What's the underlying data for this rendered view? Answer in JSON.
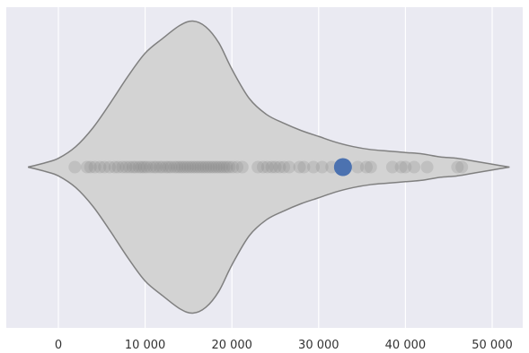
{
  "chart_data": {
    "type": "violin",
    "title": "",
    "xlabel": "",
    "ylabel": "",
    "xlim": [
      -6000,
      54000
    ],
    "x_ticks": [
      0,
      10000,
      20000,
      30000,
      40000,
      50000
    ],
    "x_tick_labels": [
      "0",
      "10 000",
      "20 000",
      "30 000",
      "40 000",
      "50 000"
    ],
    "grid": true,
    "violin_density": [
      {
        "x": -3500,
        "d": 0.0
      },
      {
        "x": -1500,
        "d": 0.03
      },
      {
        "x": 0,
        "d": 0.06
      },
      {
        "x": 2000,
        "d": 0.14
      },
      {
        "x": 4000,
        "d": 0.27
      },
      {
        "x": 6000,
        "d": 0.44
      },
      {
        "x": 8000,
        "d": 0.62
      },
      {
        "x": 10000,
        "d": 0.78
      },
      {
        "x": 12000,
        "d": 0.88
      },
      {
        "x": 14000,
        "d": 0.97
      },
      {
        "x": 15500,
        "d": 1.0
      },
      {
        "x": 17000,
        "d": 0.96
      },
      {
        "x": 18500,
        "d": 0.85
      },
      {
        "x": 20000,
        "d": 0.67
      },
      {
        "x": 22000,
        "d": 0.47
      },
      {
        "x": 24000,
        "d": 0.36
      },
      {
        "x": 26000,
        "d": 0.3
      },
      {
        "x": 28000,
        "d": 0.25
      },
      {
        "x": 30000,
        "d": 0.21
      },
      {
        "x": 32000,
        "d": 0.17
      },
      {
        "x": 34000,
        "d": 0.14
      },
      {
        "x": 36000,
        "d": 0.12
      },
      {
        "x": 38000,
        "d": 0.11
      },
      {
        "x": 40000,
        "d": 0.1
      },
      {
        "x": 42000,
        "d": 0.09
      },
      {
        "x": 44000,
        "d": 0.07
      },
      {
        "x": 46000,
        "d": 0.06
      },
      {
        "x": 48000,
        "d": 0.04
      },
      {
        "x": 50000,
        "d": 0.02
      },
      {
        "x": 52000,
        "d": 0.0
      }
    ],
    "points": [
      1900,
      3300,
      3700,
      4200,
      4800,
      5300,
      5900,
      6500,
      6900,
      7400,
      7800,
      8200,
      8600,
      8900,
      9300,
      9600,
      9900,
      10200,
      10600,
      11000,
      11300,
      11700,
      12000,
      12400,
      12700,
      13000,
      13400,
      13700,
      14000,
      14300,
      14600,
      14900,
      15200,
      15500,
      15800,
      16100,
      16400,
      16700,
      17000,
      17300,
      17600,
      17900,
      18200,
      18500,
      18800,
      19100,
      19400,
      19700,
      20100,
      20600,
      21200,
      23000,
      23600,
      24100,
      24600,
      25000,
      25500,
      26000,
      26600,
      27800,
      28300,
      29400,
      30400,
      31500,
      34500,
      35500,
      36000,
      38500,
      39500,
      40000,
      41000,
      42500,
      46000,
      46500
    ],
    "highlight_point": 32800,
    "colors": {
      "background": "#eaeaf2",
      "grid": "#ffffff",
      "violin_fill": "#d3d3d3",
      "violin_edge": "#808080",
      "points": "#808080",
      "highlight": "#4c72b0"
    }
  }
}
